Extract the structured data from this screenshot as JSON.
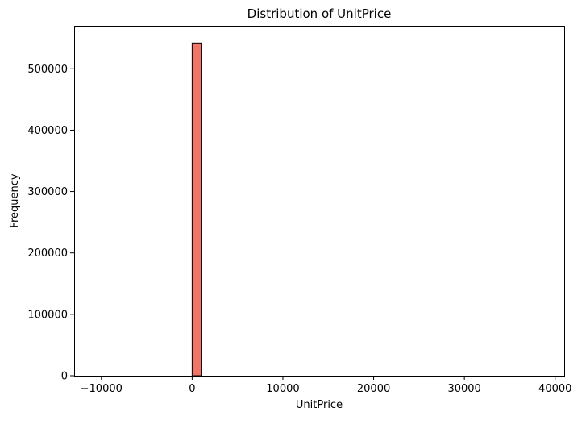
{
  "chart_data": {
    "type": "bar",
    "title": "Distribution of UnitPrice",
    "xlabel": "UnitPrice",
    "ylabel": "Frequency",
    "xlim": [
      -13000,
      41000
    ],
    "ylim": [
      0,
      570000
    ],
    "x_ticks": [
      -10000,
      0,
      10000,
      20000,
      30000,
      40000
    ],
    "x_tick_labels": [
      "−10000",
      "0",
      "10000",
      "20000",
      "30000",
      "40000"
    ],
    "y_ticks": [
      0,
      100000,
      200000,
      300000,
      400000,
      500000
    ],
    "y_tick_labels": [
      "0",
      "100000",
      "200000",
      "300000",
      "400000",
      "500000"
    ],
    "bins": [
      {
        "x0": 0,
        "x1": 1000,
        "value": 542000
      }
    ],
    "bar_color": "#F07468",
    "bar_edge_color": "#000000",
    "grid": false
  }
}
